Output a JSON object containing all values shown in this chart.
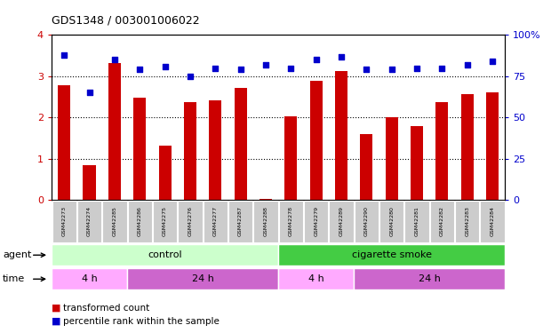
{
  "title": "GDS1348 / 003001006022",
  "samples": [
    "GSM42273",
    "GSM42274",
    "GSM42285",
    "GSM42286",
    "GSM42275",
    "GSM42276",
    "GSM42277",
    "GSM42287",
    "GSM42288",
    "GSM42278",
    "GSM42279",
    "GSM42289",
    "GSM42290",
    "GSM42280",
    "GSM42281",
    "GSM42282",
    "GSM42283",
    "GSM42284"
  ],
  "bar_values": [
    2.77,
    0.85,
    3.32,
    2.47,
    1.32,
    2.37,
    2.42,
    2.72,
    0.03,
    2.03,
    2.89,
    3.13,
    1.6,
    2.01,
    1.78,
    2.37,
    2.57,
    2.6
  ],
  "dot_values": [
    88,
    65,
    85,
    79,
    81,
    75,
    80,
    79,
    82,
    80,
    85,
    87,
    79,
    79,
    80,
    80,
    82,
    84
  ],
  "bar_color": "#cc0000",
  "dot_color": "#0000cc",
  "ylim": [
    0,
    4
  ],
  "yticks": [
    0,
    1,
    2,
    3,
    4
  ],
  "right_yticks": [
    0,
    25,
    50,
    75,
    100
  ],
  "right_ytick_labels": [
    "0",
    "25",
    "50",
    "75",
    "100%"
  ],
  "agent_groups": [
    {
      "label": "control",
      "start": 0,
      "end": 9,
      "color": "#ccffcc"
    },
    {
      "label": "cigarette smoke",
      "start": 9,
      "end": 18,
      "color": "#44cc44"
    }
  ],
  "time_groups": [
    {
      "label": "4 h",
      "start": 0,
      "end": 3,
      "color": "#ffaaff"
    },
    {
      "label": "24 h",
      "start": 3,
      "end": 9,
      "color": "#cc66cc"
    },
    {
      "label": "4 h",
      "start": 9,
      "end": 12,
      "color": "#ffaaff"
    },
    {
      "label": "24 h",
      "start": 12,
      "end": 18,
      "color": "#cc66cc"
    }
  ],
  "background_color": "#ffffff",
  "plot_bg_color": "#ffffff",
  "tick_label_color": "#cc0000",
  "right_tick_label_color": "#0000cc",
  "xlabel_bg_color": "#cccccc"
}
